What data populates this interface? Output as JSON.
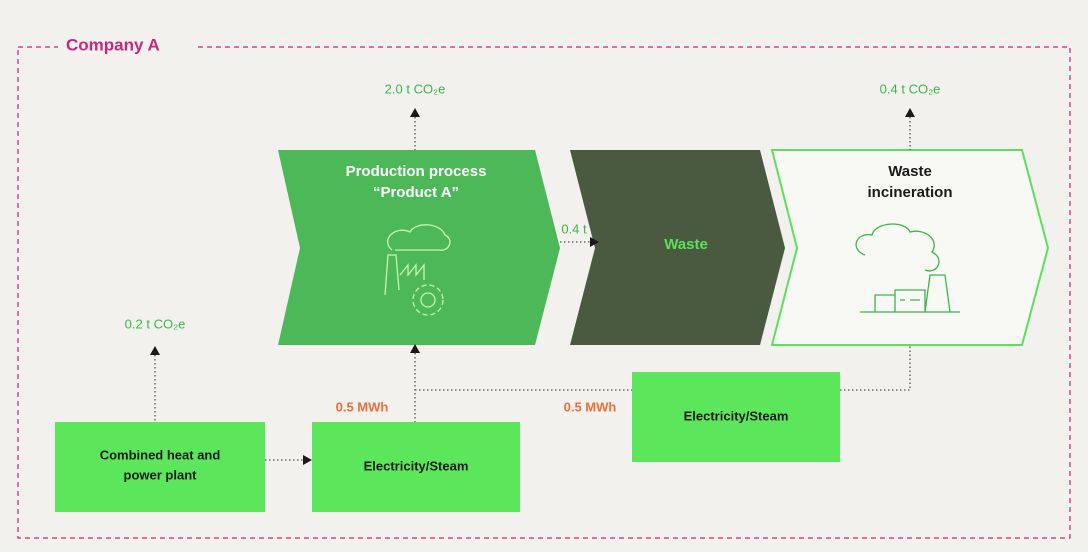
{
  "container": {
    "label": "Company A"
  },
  "processes": [
    {
      "lines": [
        "Production process",
        "“Product A”"
      ],
      "emission": "2.0 t CO₂e"
    },
    {
      "lines": [
        "Waste"
      ]
    },
    {
      "lines": [
        "Waste",
        "incineration"
      ],
      "emission": "0.4 t CO₂e"
    }
  ],
  "flow_waste": "0.4 t",
  "boxes": [
    {
      "lines": [
        "Combined heat and",
        "power plant"
      ],
      "emission": "0.2 t CO₂e"
    },
    {
      "lines": [
        "Electricity/Steam"
      ],
      "flow": "0.5 MWh"
    },
    {
      "lines": [
        "Electricity/Steam"
      ],
      "flow": "0.5 MWh"
    }
  ]
}
